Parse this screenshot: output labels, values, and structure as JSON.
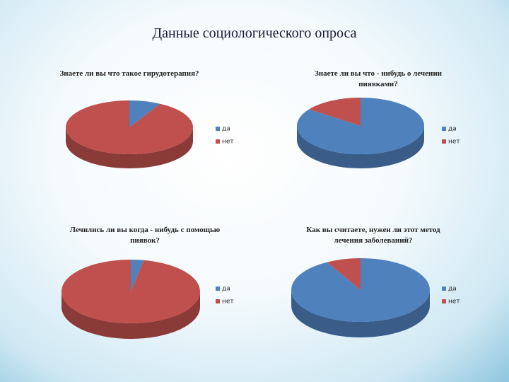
{
  "title": "Данные социологического опроса",
  "chart_data": [
    {
      "type": "pie",
      "title": "Знаете ли вы что такое гирудотерапия?",
      "categories": [
        "да",
        "нет"
      ],
      "values": [
        8,
        92
      ],
      "colors": [
        "#4f81bd",
        "#c0504d"
      ]
    },
    {
      "type": "pie",
      "title": "Знаете ли вы что - нибудь о лечении пиявками?",
      "categories": [
        "да",
        "нет"
      ],
      "values": [
        85,
        15
      ],
      "colors": [
        "#4f81bd",
        "#c0504d"
      ]
    },
    {
      "type": "pie",
      "title": "Лечились ли вы когда - нибудь с помощью пиявок?",
      "categories": [
        "да",
        "нет"
      ],
      "values": [
        3,
        97
      ],
      "colors": [
        "#4f81bd",
        "#c0504d"
      ]
    },
    {
      "type": "pie",
      "title": "Как вы считаете, нужен ли этот метод лечения заболеваний?",
      "categories": [
        "да",
        "нет"
      ],
      "values": [
        92,
        8
      ],
      "colors": [
        "#4f81bd",
        "#c0504d"
      ]
    }
  ]
}
